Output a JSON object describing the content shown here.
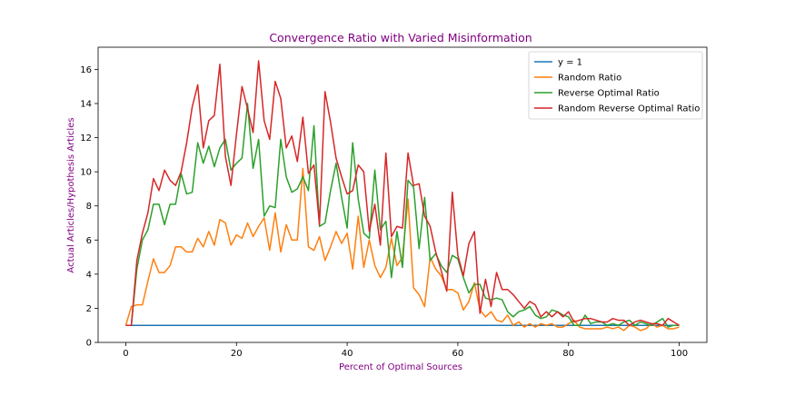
{
  "chart_data": {
    "type": "line",
    "title": "Convergence Ratio with Varied Misinformation",
    "xlabel": "Percent of Optimal Sources",
    "ylabel": "Actual Articles/Hypothesis Articles",
    "xlim": [
      -5,
      105
    ],
    "ylim": [
      0,
      17.3
    ],
    "x_ticks": [
      0,
      20,
      40,
      60,
      80,
      100
    ],
    "y_ticks": [
      0,
      2,
      4,
      6,
      8,
      10,
      12,
      14,
      16
    ],
    "grid": false,
    "legend_position": "top-right",
    "label_color": "#800080",
    "series": [
      {
        "name": "y = 1",
        "color": "#1f77b4",
        "x": [
          0,
          100
        ],
        "y": [
          1,
          1
        ]
      },
      {
        "name": "Random Ratio",
        "color": "#ff7f0e",
        "x": [
          0,
          1,
          2,
          3,
          4,
          5,
          6,
          7,
          8,
          9,
          10,
          11,
          12,
          13,
          14,
          15,
          16,
          17,
          18,
          19,
          20,
          21,
          22,
          23,
          24,
          25,
          26,
          27,
          28,
          29,
          30,
          31,
          32,
          33,
          34,
          35,
          36,
          37,
          38,
          39,
          40,
          41,
          42,
          43,
          44,
          45,
          46,
          47,
          48,
          49,
          50,
          51,
          52,
          53,
          54,
          55,
          56,
          57,
          58,
          59,
          60,
          61,
          62,
          63,
          64,
          65,
          66,
          67,
          68,
          69,
          70,
          71,
          72,
          73,
          74,
          75,
          76,
          77,
          78,
          79,
          80,
          81,
          82,
          83,
          84,
          85,
          86,
          87,
          88,
          89,
          90,
          91,
          92,
          93,
          94,
          95,
          96,
          97,
          98,
          99,
          100
        ],
        "y": [
          1,
          2.1,
          2.2,
          2.2,
          3.6,
          4.9,
          4.1,
          4.1,
          4.5,
          5.6,
          5.6,
          5.3,
          5.3,
          6.1,
          5.6,
          6.5,
          5.7,
          7.2,
          7.0,
          5.7,
          6.3,
          6.1,
          7.0,
          6.2,
          6.8,
          7.3,
          5.4,
          7.6,
          5.3,
          6.9,
          6.0,
          6.0,
          10.2,
          5.6,
          5.4,
          6.2,
          4.8,
          5.6,
          6.5,
          5.8,
          6.4,
          4.3,
          7.4,
          4.4,
          6.0,
          4.5,
          3.8,
          4.4,
          6.1,
          4.5,
          5.0,
          8.4,
          3.2,
          2.8,
          2.1,
          5.0,
          4.3,
          3.9,
          3.1,
          3.1,
          2.9,
          1.9,
          2.4,
          3.5,
          1.9,
          1.5,
          1.8,
          1.3,
          1.2,
          1.6,
          1.0,
          1.2,
          0.9,
          1.1,
          0.9,
          1.1,
          1.0,
          1.1,
          0.9,
          0.9,
          1.1,
          1.3,
          0.9,
          0.8,
          0.8,
          0.8,
          0.8,
          0.9,
          0.8,
          0.9,
          0.7,
          1.0,
          0.9,
          0.7,
          0.8,
          1.1,
          0.9,
          1.0,
          0.8,
          0.8,
          0.9
        ]
      },
      {
        "name": "Reverse Optimal Ratio",
        "color": "#2ca02c",
        "x": [
          0,
          1,
          2,
          3,
          4,
          5,
          6,
          7,
          8,
          9,
          10,
          11,
          12,
          13,
          14,
          15,
          16,
          17,
          18,
          19,
          20,
          21,
          22,
          23,
          24,
          25,
          26,
          27,
          28,
          29,
          30,
          31,
          32,
          33,
          34,
          35,
          36,
          37,
          38,
          39,
          40,
          41,
          42,
          43,
          44,
          45,
          46,
          47,
          48,
          49,
          50,
          51,
          52,
          53,
          54,
          55,
          56,
          57,
          58,
          59,
          60,
          61,
          62,
          63,
          64,
          65,
          66,
          67,
          68,
          69,
          70,
          71,
          72,
          73,
          74,
          75,
          76,
          77,
          78,
          79,
          80,
          81,
          82,
          83,
          84,
          85,
          86,
          87,
          88,
          89,
          90,
          91,
          92,
          93,
          94,
          95,
          96,
          97,
          98,
          99,
          100
        ],
        "y": [
          1,
          1,
          4.3,
          6.0,
          6.6,
          8.1,
          8.1,
          6.9,
          8.1,
          8.1,
          9.9,
          8.7,
          8.8,
          11.7,
          10.5,
          11.5,
          10.3,
          11.4,
          11.9,
          10.1,
          10.5,
          10.8,
          14.0,
          10.2,
          11.9,
          7.4,
          8.0,
          7.9,
          11.9,
          9.7,
          8.8,
          9.0,
          9.7,
          8.9,
          12.7,
          6.8,
          7.0,
          8.9,
          10.5,
          8.5,
          6.7,
          11.7,
          8.4,
          6.4,
          6.1,
          10.1,
          6.6,
          7.1,
          3.8,
          6.5,
          4.4,
          9.5,
          9.1,
          5.5,
          8.5,
          4.8,
          5.2,
          4.5,
          4.1,
          5.1,
          4.9,
          3.8,
          2.9,
          3.4,
          3.4,
          2.6,
          2.5,
          2.6,
          2.5,
          1.8,
          1.5,
          1.8,
          1.9,
          2.1,
          1.6,
          1.4,
          1.5,
          1.9,
          1.8,
          1.6,
          1.5,
          1.0,
          1.0,
          1.6,
          1.1,
          1.2,
          1.2,
          1.0,
          1.1,
          1.0,
          1.2,
          1.3,
          1.0,
          1.2,
          1.1,
          1.0,
          1.2,
          1.4,
          0.9,
          1.0,
          1.0
        ]
      },
      {
        "name": "Random Reverse Optimal Ratio",
        "color": "#d62728",
        "x": [
          0,
          1,
          2,
          3,
          4,
          5,
          6,
          7,
          8,
          9,
          10,
          11,
          12,
          13,
          14,
          15,
          16,
          17,
          18,
          19,
          20,
          21,
          22,
          23,
          24,
          25,
          26,
          27,
          28,
          29,
          30,
          31,
          32,
          33,
          34,
          35,
          36,
          37,
          38,
          39,
          40,
          41,
          42,
          43,
          44,
          45,
          46,
          47,
          48,
          49,
          50,
          51,
          52,
          53,
          54,
          55,
          56,
          57,
          58,
          59,
          60,
          61,
          62,
          63,
          64,
          65,
          66,
          67,
          68,
          69,
          70,
          71,
          72,
          73,
          74,
          75,
          76,
          77,
          78,
          79,
          80,
          81,
          82,
          83,
          84,
          85,
          86,
          87,
          88,
          89,
          90,
          91,
          92,
          93,
          94,
          95,
          96,
          97,
          98,
          99,
          100
        ],
        "y": [
          1,
          1,
          4.8,
          6.4,
          7.6,
          9.6,
          8.9,
          10.1,
          9.5,
          9.2,
          10.0,
          11.7,
          13.8,
          15.1,
          11.4,
          13.0,
          13.3,
          16.3,
          10.9,
          9.2,
          12.2,
          15.0,
          13.7,
          12.3,
          16.5,
          13.0,
          11.9,
          15.3,
          14.3,
          11.4,
          12.1,
          10.6,
          13.2,
          9.9,
          10.4,
          6.9,
          14.7,
          12.9,
          10.8,
          9.7,
          8.7,
          8.9,
          10.4,
          10.0,
          6.5,
          8.1,
          5.7,
          11.1,
          6.2,
          6.8,
          6.7,
          11.1,
          9.2,
          9.3,
          7.4,
          6.8,
          5.3,
          4.2,
          3.0,
          8.8,
          5.1,
          3.9,
          5.8,
          6.5,
          1.7,
          3.7,
          2.1,
          4.1,
          3.1,
          3.1,
          2.8,
          2.4,
          2.0,
          2.4,
          2.2,
          1.5,
          1.8,
          1.5,
          1.8,
          1.5,
          1.8,
          1.2,
          1.3,
          1.4,
          1.4,
          1.3,
          1.2,
          1.2,
          1.4,
          1.3,
          1.3,
          1.0,
          1.2,
          1.3,
          1.2,
          1.1,
          1.1,
          1.0,
          1.4,
          1.2,
          1.0
        ]
      }
    ]
  }
}
